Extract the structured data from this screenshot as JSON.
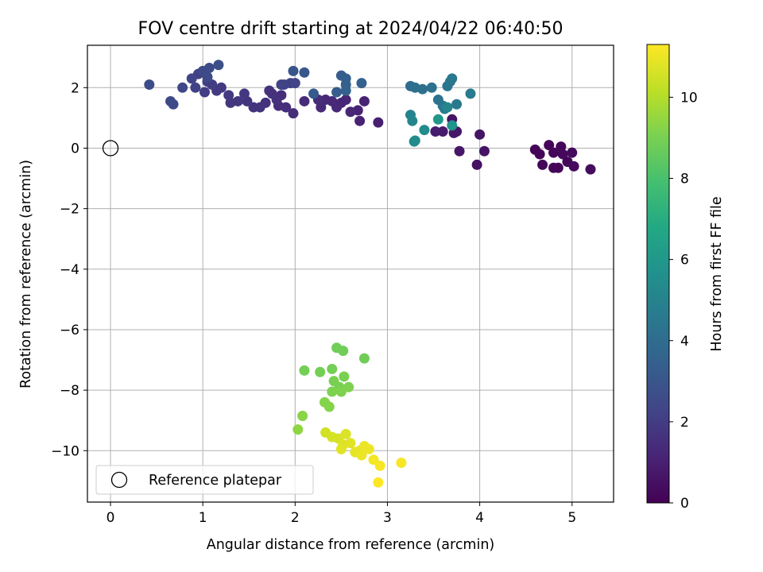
{
  "chart_data": {
    "type": "scatter",
    "title": "FOV centre drift starting at 2024/04/22 06:40:50",
    "xlabel": "Angular distance from reference (arcmin)",
    "ylabel": "Rotation from reference (arcmin)",
    "xlim": [
      -0.25,
      5.45
    ],
    "ylim": [
      -11.7,
      3.4
    ],
    "xticks": [
      0,
      1,
      2,
      3,
      4,
      5
    ],
    "yticks": [
      2,
      0,
      -2,
      -4,
      -6,
      -8,
      -10
    ],
    "xtick_labels": [
      "0",
      "1",
      "2",
      "3",
      "4",
      "5"
    ],
    "ytick_labels": [
      "2",
      "0",
      "−2",
      "−4",
      "−6",
      "−8",
      "−10"
    ],
    "grid": true,
    "legend": {
      "position": "lower-left",
      "entries": [
        {
          "label": "Reference platepar",
          "marker": "open-circle"
        }
      ]
    },
    "reference_point": {
      "x": 0,
      "y": 0
    },
    "colorbar": {
      "label": "Hours from first FF file",
      "colormap": "viridis",
      "range": [
        0,
        11.3
      ],
      "ticks": [
        0,
        2,
        4,
        6,
        8,
        10
      ],
      "tick_labels": [
        "0",
        "2",
        "4",
        "6",
        "8",
        "10"
      ]
    },
    "points": [
      {
        "x": 4.6,
        "y": -0.05,
        "c": 0.1
      },
      {
        "x": 4.65,
        "y": -0.2,
        "c": 0.1
      },
      {
        "x": 4.68,
        "y": -0.55,
        "c": 0.15
      },
      {
        "x": 4.75,
        "y": 0.1,
        "c": 0.1
      },
      {
        "x": 4.8,
        "y": -0.15,
        "c": 0.2
      },
      {
        "x": 4.8,
        "y": -0.65,
        "c": 0.2
      },
      {
        "x": 4.85,
        "y": -0.65,
        "c": 0.15
      },
      {
        "x": 4.88,
        "y": 0.05,
        "c": 0.2
      },
      {
        "x": 4.9,
        "y": -0.2,
        "c": 0.25
      },
      {
        "x": 4.95,
        "y": -0.45,
        "c": 0.2
      },
      {
        "x": 5.0,
        "y": -0.15,
        "c": 0.3
      },
      {
        "x": 5.02,
        "y": -0.6,
        "c": 0.3
      },
      {
        "x": 5.2,
        "y": -0.7,
        "c": 0.35
      },
      {
        "x": 3.97,
        "y": -0.55,
        "c": 0.5
      },
      {
        "x": 4.0,
        "y": 0.45,
        "c": 0.6
      },
      {
        "x": 4.05,
        "y": -0.1,
        "c": 0.6
      },
      {
        "x": 3.78,
        "y": -0.1,
        "c": 0.7
      },
      {
        "x": 3.7,
        "y": 0.95,
        "c": 0.6
      },
      {
        "x": 3.72,
        "y": 0.5,
        "c": 0.7
      },
      {
        "x": 3.75,
        "y": 0.55,
        "c": 0.7
      },
      {
        "x": 3.6,
        "y": 0.55,
        "c": 0.8
      },
      {
        "x": 3.52,
        "y": 0.55,
        "c": 0.9
      },
      {
        "x": 2.9,
        "y": 0.85,
        "c": 1.0
      },
      {
        "x": 2.75,
        "y": 1.55,
        "c": 1.1
      },
      {
        "x": 2.7,
        "y": 0.9,
        "c": 1.1
      },
      {
        "x": 2.68,
        "y": 1.25,
        "c": 1.1
      },
      {
        "x": 2.6,
        "y": 1.2,
        "c": 1.2
      },
      {
        "x": 2.55,
        "y": 1.6,
        "c": 1.2
      },
      {
        "x": 2.5,
        "y": 1.5,
        "c": 1.2
      },
      {
        "x": 2.45,
        "y": 1.35,
        "c": 1.3
      },
      {
        "x": 2.4,
        "y": 1.55,
        "c": 1.3
      },
      {
        "x": 2.33,
        "y": 1.6,
        "c": 1.3
      },
      {
        "x": 2.28,
        "y": 1.35,
        "c": 1.3
      },
      {
        "x": 2.25,
        "y": 1.6,
        "c": 1.4
      },
      {
        "x": 2.1,
        "y": 1.55,
        "c": 1.4
      },
      {
        "x": 1.98,
        "y": 1.15,
        "c": 1.5
      },
      {
        "x": 1.9,
        "y": 1.35,
        "c": 1.5
      },
      {
        "x": 1.85,
        "y": 1.75,
        "c": 1.5
      },
      {
        "x": 1.82,
        "y": 1.4,
        "c": 1.5
      },
      {
        "x": 1.8,
        "y": 1.6,
        "c": 1.6
      },
      {
        "x": 1.75,
        "y": 1.8,
        "c": 1.6
      },
      {
        "x": 1.72,
        "y": 1.9,
        "c": 1.6
      },
      {
        "x": 1.68,
        "y": 1.5,
        "c": 1.6
      },
      {
        "x": 1.62,
        "y": 1.35,
        "c": 1.7
      },
      {
        "x": 1.55,
        "y": 1.35,
        "c": 1.7
      },
      {
        "x": 1.48,
        "y": 1.55,
        "c": 1.7
      },
      {
        "x": 1.45,
        "y": 1.8,
        "c": 1.8
      },
      {
        "x": 1.38,
        "y": 1.55,
        "c": 1.8
      },
      {
        "x": 1.3,
        "y": 1.5,
        "c": 1.8
      },
      {
        "x": 1.28,
        "y": 1.75,
        "c": 1.9
      },
      {
        "x": 1.2,
        "y": 2.0,
        "c": 1.9
      },
      {
        "x": 1.15,
        "y": 1.9,
        "c": 1.9
      },
      {
        "x": 1.1,
        "y": 2.1,
        "c": 2.0
      },
      {
        "x": 1.05,
        "y": 2.2,
        "c": 2.0
      },
      {
        "x": 1.02,
        "y": 1.85,
        "c": 2.1
      },
      {
        "x": 0.95,
        "y": 2.45,
        "c": 2.2
      },
      {
        "x": 0.92,
        "y": 2.0,
        "c": 2.2
      },
      {
        "x": 0.88,
        "y": 2.3,
        "c": 2.3
      },
      {
        "x": 0.78,
        "y": 2.0,
        "c": 2.4
      },
      {
        "x": 0.68,
        "y": 1.45,
        "c": 2.5
      },
      {
        "x": 0.65,
        "y": 1.55,
        "c": 2.5
      },
      {
        "x": 0.42,
        "y": 2.1,
        "c": 2.6
      },
      {
        "x": 1.0,
        "y": 2.55,
        "c": 2.5
      },
      {
        "x": 1.05,
        "y": 2.35,
        "c": 2.6
      },
      {
        "x": 1.07,
        "y": 2.65,
        "c": 2.6
      },
      {
        "x": 1.17,
        "y": 2.75,
        "c": 2.7
      },
      {
        "x": 1.88,
        "y": 2.1,
        "c": 2.2
      },
      {
        "x": 1.95,
        "y": 2.15,
        "c": 2.2
      },
      {
        "x": 2.0,
        "y": 2.15,
        "c": 2.3
      },
      {
        "x": 1.85,
        "y": 2.1,
        "c": 2.3
      },
      {
        "x": 1.98,
        "y": 2.55,
        "c": 3.0
      },
      {
        "x": 2.1,
        "y": 2.5,
        "c": 3.1
      },
      {
        "x": 2.2,
        "y": 1.8,
        "c": 3.2
      },
      {
        "x": 2.45,
        "y": 1.85,
        "c": 3.3
      },
      {
        "x": 2.5,
        "y": 2.4,
        "c": 3.3
      },
      {
        "x": 2.55,
        "y": 2.3,
        "c": 3.4
      },
      {
        "x": 2.55,
        "y": 2.1,
        "c": 3.4
      },
      {
        "x": 2.55,
        "y": 1.9,
        "c": 3.5
      },
      {
        "x": 2.72,
        "y": 2.15,
        "c": 3.5
      },
      {
        "x": 3.25,
        "y": 2.05,
        "c": 4.0
      },
      {
        "x": 3.3,
        "y": 2.0,
        "c": 4.1
      },
      {
        "x": 3.38,
        "y": 1.95,
        "c": 4.1
      },
      {
        "x": 3.48,
        "y": 2.0,
        "c": 4.2
      },
      {
        "x": 3.55,
        "y": 1.6,
        "c": 4.3
      },
      {
        "x": 3.6,
        "y": 1.4,
        "c": 4.3
      },
      {
        "x": 3.65,
        "y": 2.05,
        "c": 4.4
      },
      {
        "x": 3.68,
        "y": 2.2,
        "c": 4.4
      },
      {
        "x": 3.7,
        "y": 2.3,
        "c": 4.5
      },
      {
        "x": 3.75,
        "y": 1.45,
        "c": 4.5
      },
      {
        "x": 3.9,
        "y": 1.8,
        "c": 4.6
      },
      {
        "x": 3.62,
        "y": 1.3,
        "c": 4.6
      },
      {
        "x": 3.25,
        "y": 1.1,
        "c": 5.0
      },
      {
        "x": 3.27,
        "y": 0.9,
        "c": 5.1
      },
      {
        "x": 3.3,
        "y": 0.25,
        "c": 5.3
      },
      {
        "x": 3.29,
        "y": 0.22,
        "c": 5.4
      },
      {
        "x": 3.4,
        "y": 0.6,
        "c": 5.4
      },
      {
        "x": 3.55,
        "y": 0.95,
        "c": 5.9
      },
      {
        "x": 3.7,
        "y": 0.75,
        "c": 5.8
      },
      {
        "x": 3.65,
        "y": 1.35,
        "c": 5.2
      },
      {
        "x": 2.45,
        "y": -6.6,
        "c": 8.8
      },
      {
        "x": 2.52,
        "y": -6.7,
        "c": 8.8
      },
      {
        "x": 2.75,
        "y": -6.95,
        "c": 8.8
      },
      {
        "x": 2.1,
        "y": -7.35,
        "c": 8.9
      },
      {
        "x": 2.27,
        "y": -7.4,
        "c": 8.9
      },
      {
        "x": 2.4,
        "y": -7.3,
        "c": 8.9
      },
      {
        "x": 2.53,
        "y": -7.55,
        "c": 9.0
      },
      {
        "x": 2.42,
        "y": -7.7,
        "c": 9.0
      },
      {
        "x": 2.48,
        "y": -7.9,
        "c": 9.0
      },
      {
        "x": 2.58,
        "y": -7.9,
        "c": 9.1
      },
      {
        "x": 2.4,
        "y": -8.05,
        "c": 9.1
      },
      {
        "x": 2.5,
        "y": -8.05,
        "c": 9.1
      },
      {
        "x": 2.32,
        "y": -8.4,
        "c": 9.2
      },
      {
        "x": 2.37,
        "y": -8.55,
        "c": 9.2
      },
      {
        "x": 2.08,
        "y": -8.85,
        "c": 9.3
      },
      {
        "x": 2.03,
        "y": -9.3,
        "c": 9.4
      },
      {
        "x": 2.33,
        "y": -9.4,
        "c": 10.5
      },
      {
        "x": 2.4,
        "y": -9.55,
        "c": 10.6
      },
      {
        "x": 2.47,
        "y": -9.6,
        "c": 10.6
      },
      {
        "x": 2.55,
        "y": -9.45,
        "c": 10.7
      },
      {
        "x": 2.52,
        "y": -9.8,
        "c": 10.7
      },
      {
        "x": 2.6,
        "y": -9.75,
        "c": 10.8
      },
      {
        "x": 2.5,
        "y": -9.95,
        "c": 10.8
      },
      {
        "x": 2.65,
        "y": -10.05,
        "c": 10.9
      },
      {
        "x": 2.7,
        "y": -10.0,
        "c": 10.9
      },
      {
        "x": 2.75,
        "y": -9.85,
        "c": 11.0
      },
      {
        "x": 2.8,
        "y": -9.95,
        "c": 11.0
      },
      {
        "x": 2.72,
        "y": -10.15,
        "c": 11.0
      },
      {
        "x": 2.85,
        "y": -10.3,
        "c": 11.1
      },
      {
        "x": 2.92,
        "y": -10.5,
        "c": 11.2
      },
      {
        "x": 3.15,
        "y": -10.4,
        "c": 11.2
      },
      {
        "x": 2.9,
        "y": -11.05,
        "c": 11.3
      }
    ]
  }
}
